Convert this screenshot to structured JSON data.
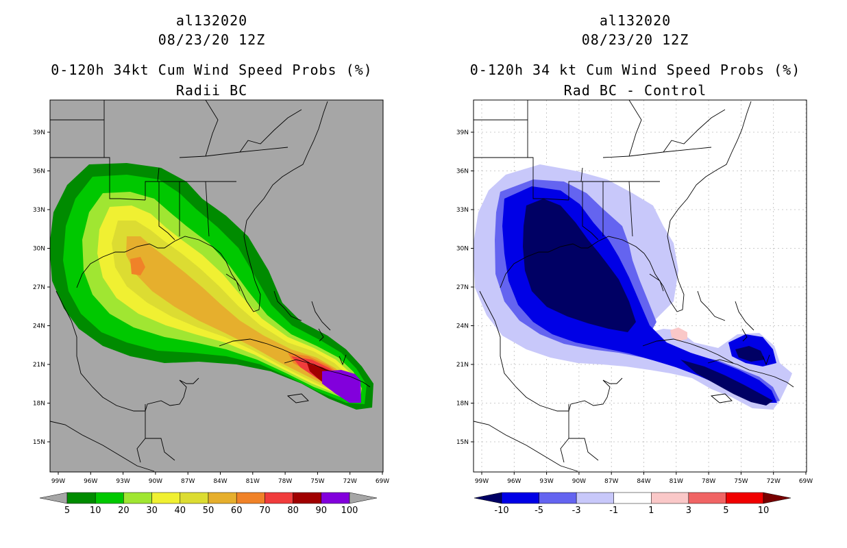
{
  "left_panel": {
    "storm_id": "al132020",
    "date": "08/23/20 12Z",
    "title": "0-120h 34kt Cum Wind Speed Probs (%)",
    "subtitle": "Radii BC",
    "background_color": "#a6a6a6",
    "colorbar": {
      "colors": [
        "#008b00",
        "#00c800",
        "#a0e632",
        "#f0f032",
        "#dcdc32",
        "#e6af2d",
        "#f08228",
        "#f03c3c",
        "#a00000",
        "#8200dc"
      ],
      "under_color": "#a6a6a6",
      "over_color": "#a6a6a6",
      "labels": [
        "5",
        "10",
        "20",
        "30",
        "40",
        "50",
        "60",
        "70",
        "80",
        "90",
        "100"
      ]
    }
  },
  "right_panel": {
    "storm_id": "al132020",
    "date": "08/23/20 12Z",
    "title": "0-120h 34 kt Cum Wind Speed Probs (%)",
    "subtitle": "Rad BC - Control",
    "background_color": "#ffffff",
    "colorbar": {
      "colors": [
        "#0000e6",
        "#6464f0",
        "#c8c8fa",
        "#ffffff",
        "#fac8c8",
        "#f06464",
        "#f00000"
      ],
      "under_color": "#000064",
      "over_color": "#780000",
      "labels": [
        "-10",
        "-5",
        "-3",
        "-1",
        "1",
        "3",
        "5",
        "10"
      ]
    }
  },
  "map": {
    "lat_labels": [
      "39N",
      "36N",
      "33N",
      "30N",
      "27N",
      "24N",
      "21N",
      "18N",
      "15N"
    ],
    "lon_labels": [
      "99W",
      "96W",
      "93W",
      "90W",
      "87W",
      "84W",
      "81W",
      "78W",
      "75W",
      "72W",
      "69W"
    ]
  }
}
